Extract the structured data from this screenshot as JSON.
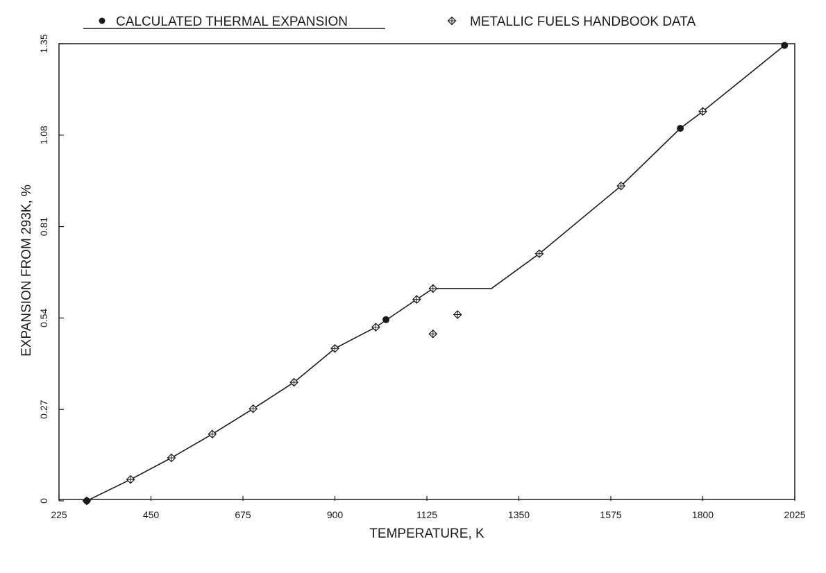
{
  "chart_data": {
    "type": "line",
    "xlabel": "TEMPERATURE, K",
    "ylabel": "EXPANSION FROM 293K, %",
    "xlim": [
      225,
      2025
    ],
    "ylim": [
      0,
      1.35
    ],
    "x_ticks": [
      "225",
      "450",
      "675",
      "900",
      "1125",
      "1350",
      "1575",
      "1800",
      "2025"
    ],
    "y_ticks": [
      "0",
      "0.27",
      "0.54",
      "0.81",
      "1.08",
      "1.35"
    ],
    "legend_position": "top",
    "grid": false,
    "series": [
      {
        "name": "CALCULATED THERMAL EXPANSION",
        "style": "line-with-filled-circles",
        "line_points": [
          {
            "x": 293,
            "y": 0.0
          },
          {
            "x": 400,
            "y": 0.063
          },
          {
            "x": 500,
            "y": 0.127
          },
          {
            "x": 600,
            "y": 0.197
          },
          {
            "x": 700,
            "y": 0.272
          },
          {
            "x": 800,
            "y": 0.35
          },
          {
            "x": 900,
            "y": 0.45
          },
          {
            "x": 1000,
            "y": 0.513
          },
          {
            "x": 1100,
            "y": 0.595
          },
          {
            "x": 1140,
            "y": 0.627
          },
          {
            "x": 1283,
            "y": 0.627
          },
          {
            "x": 1400,
            "y": 0.73
          },
          {
            "x": 1600,
            "y": 0.93
          },
          {
            "x": 1745,
            "y": 1.1
          },
          {
            "x": 1800,
            "y": 1.15
          },
          {
            "x": 2000,
            "y": 1.345
          }
        ],
        "markers": [
          {
            "x": 293,
            "y": 0.0
          },
          {
            "x": 1025,
            "y": 0.535
          },
          {
            "x": 1745,
            "y": 1.1
          },
          {
            "x": 2000,
            "y": 1.345
          }
        ]
      },
      {
        "name": "METALLIC FUELS HANDBOOK DATA",
        "style": "open-diamond-markers",
        "markers": [
          {
            "x": 293,
            "y": 0.0
          },
          {
            "x": 400,
            "y": 0.063
          },
          {
            "x": 500,
            "y": 0.127
          },
          {
            "x": 600,
            "y": 0.197
          },
          {
            "x": 700,
            "y": 0.272
          },
          {
            "x": 800,
            "y": 0.35
          },
          {
            "x": 900,
            "y": 0.45
          },
          {
            "x": 1000,
            "y": 0.513
          },
          {
            "x": 1100,
            "y": 0.595
          },
          {
            "x": 1140,
            "y": 0.627
          },
          {
            "x": 1140,
            "y": 0.493
          },
          {
            "x": 1200,
            "y": 0.55
          },
          {
            "x": 1400,
            "y": 0.73
          },
          {
            "x": 1600,
            "y": 0.93
          },
          {
            "x": 1800,
            "y": 1.15
          }
        ]
      }
    ]
  },
  "legend": {
    "calculated_label": "CALCULATED THERMAL EXPANSION",
    "handbook_label": "METALLIC FUELS HANDBOOK DATA"
  }
}
